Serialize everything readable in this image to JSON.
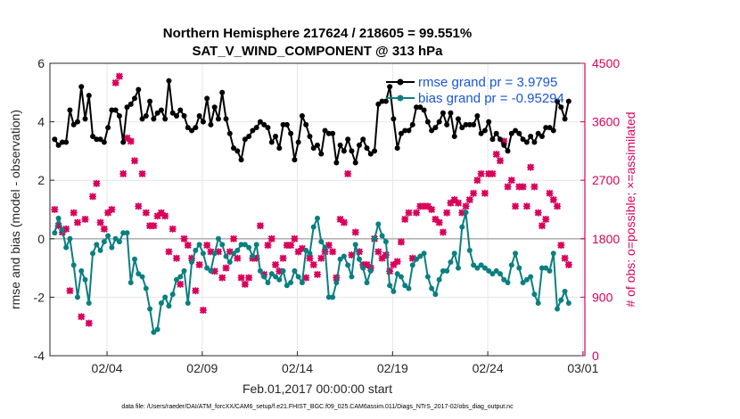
{
  "chart_data": {
    "type": "line",
    "title": "Northern Hemisphere 217624 / 218605 = 99.551%",
    "subtitle": "SAT_V_WIND_COMPONENT @ 313 hPa",
    "xlabel": "Feb.01,2017 00:00:00 start",
    "ylabel": "rmse and bias (model - observation)",
    "y2label": "# of obs: o=possible; ×=assimilated",
    "footer": "data file: /Users/raeder/DAI/ATM_forcXX/CAM6_setup/f.e21.FHIST_BGC.f09_025.CAM6assim.011/Diags_NTrS_2017-02/obs_diag_output.nc",
    "xlim": [
      1.0,
      29.1
    ],
    "ylim": [
      -4,
      6
    ],
    "y2lim": [
      0,
      4500
    ],
    "x_ticks": [
      {
        "value": 4,
        "label": "02/04"
      },
      {
        "value": 9,
        "label": "02/09"
      },
      {
        "value": 14,
        "label": "02/14"
      },
      {
        "value": 19,
        "label": "02/19"
      },
      {
        "value": 24,
        "label": "02/24"
      },
      {
        "value": 29,
        "label": "03/01"
      }
    ],
    "y_ticks": [
      {
        "value": -4,
        "label": "-4"
      },
      {
        "value": -2,
        "label": "-2"
      },
      {
        "value": 0,
        "label": "0"
      },
      {
        "value": 2,
        "label": "2"
      },
      {
        "value": 4,
        "label": "4"
      },
      {
        "value": 6,
        "label": "6"
      }
    ],
    "y2_ticks": [
      {
        "value": 0,
        "label": "0"
      },
      {
        "value": 900,
        "label": "900"
      },
      {
        "value": 1800,
        "label": "1800"
      },
      {
        "value": 2700,
        "label": "2700"
      },
      {
        "value": 3600,
        "label": "3600"
      },
      {
        "value": 4500,
        "label": "4500"
      }
    ],
    "grid": true,
    "legend_position": "top-right",
    "series": [
      {
        "name": "rmse grand pr = 3.9795",
        "axis": "left",
        "color": "#000000",
        "marker": "circle",
        "values": [
          3.4,
          3.2,
          3.3,
          3.3,
          4.4,
          3.9,
          4.0,
          5.2,
          4.1,
          4.9,
          3.5,
          3.4,
          3.4,
          3.3,
          3.8,
          4.4,
          4.4,
          4.2,
          3.3,
          4.5,
          4.6,
          4.8,
          5.1,
          4.1,
          4.2,
          4.7,
          4.1,
          4.3,
          4.4,
          4.1,
          5.4,
          4.3,
          4.2,
          4.4,
          4.2,
          3.8,
          3.7,
          3.8,
          4.2,
          4.0,
          4.8,
          3.9,
          4.5,
          4.1,
          5.0,
          4.1,
          3.6,
          3.1,
          3.0,
          2.7,
          3.4,
          3.5,
          3.7,
          3.8,
          4.0,
          3.9,
          3.8,
          3.3,
          3.5,
          3.1,
          3.9,
          3.9,
          3.6,
          2.7,
          3.3,
          4.2,
          3.9,
          3.5,
          3.1,
          3.2,
          2.9,
          3.7,
          3.6,
          3.6,
          2.6,
          3.2,
          3.0,
          3.4,
          3.0,
          2.6,
          3.2,
          3.4,
          3.1,
          2.9,
          3.0,
          4.6,
          4.7,
          4.7,
          5.2,
          4.1,
          3.1,
          3.6,
          3.7,
          3.7,
          3.9,
          4.5,
          4.5,
          4.4,
          4.0,
          3.7,
          3.8,
          4.0,
          4.3,
          3.9,
          4.3,
          3.5,
          4.1,
          3.8,
          3.9,
          3.9,
          3.9,
          4.2,
          3.6,
          3.7,
          4.0,
          3.4,
          3.6,
          3.4,
          3.2,
          3.0,
          3.6,
          3.7,
          3.6,
          3.4,
          3.3,
          3.5,
          3.3,
          3.6,
          3.5,
          3.8,
          3.8,
          3.7,
          4.7,
          4.5,
          4.1,
          4.7
        ]
      },
      {
        "name": "bias grand pr = -0.95294",
        "axis": "left",
        "color": "#0a7f80",
        "marker": "circle",
        "values": [
          0.2,
          0.7,
          0.3,
          -0.3,
          0.0,
          -0.9,
          -2.0,
          -1.1,
          -1.4,
          -2.2,
          -0.5,
          -0.2,
          -0.4,
          -0.1,
          0.1,
          -0.3,
          0.0,
          -0.1,
          0.2,
          0.2,
          -1.5,
          -0.7,
          -1.2,
          -1.3,
          -1.7,
          -2.4,
          -3.2,
          -3.1,
          -2.2,
          -2.0,
          -2.3,
          -1.9,
          -1.4,
          -1.3,
          -1.1,
          -2.2,
          -0.8,
          -0.4,
          -0.2,
          -0.5,
          -1.0,
          -1.1,
          -0.5,
          0.0,
          -0.2,
          -0.6,
          -0.8,
          -0.5,
          -0.4,
          -0.2,
          -0.2,
          -0.3,
          -0.6,
          -0.2,
          -1.1,
          -1.3,
          -1.5,
          -1.2,
          -1.3,
          -1.4,
          -1.1,
          -1.6,
          -1.5,
          -1.1,
          -1.3,
          -1.5,
          -0.4,
          -0.5,
          0.4,
          0.7,
          -0.1,
          -0.3,
          -2.0,
          -2.0,
          -1.5,
          -0.7,
          -0.6,
          -0.9,
          -1.3,
          -0.2,
          -0.7,
          -1.0,
          -1.5,
          -1.1,
          0.0,
          0.5,
          0.1,
          -0.1,
          -1.6,
          -1.8,
          -1.2,
          -1.3,
          -1.6,
          -1.7,
          -0.9,
          -0.7,
          -0.6,
          -0.5,
          -1.3,
          -1.7,
          -1.9,
          -1.4,
          -1.1,
          -1.1,
          -0.8,
          -0.5,
          -1.0,
          0.4,
          0.9,
          -0.4,
          -0.9,
          -1.0,
          -0.9,
          -1.0,
          -1.1,
          -1.2,
          -1.1,
          -1.2,
          -1.4,
          -1.5,
          -0.9,
          -0.5,
          -1.0,
          -1.5,
          -1.4,
          -1.3,
          -1.9,
          -2.2,
          -1.0,
          -1.0,
          -1.1,
          -0.5,
          -2.4,
          -2.1,
          -1.8,
          -2.2
        ]
      },
      {
        "name": "obs assimilated",
        "axis": "right",
        "color": "#d9005b",
        "marker": "x",
        "show_in_legend": false,
        "values": [
          2250,
          2000,
          1900,
          1950,
          1000,
          2200,
          2050,
          600,
          2100,
          500,
          2450,
          2650,
          2050,
          1950,
          2200,
          2250,
          4200,
          4300,
          2800,
          3350,
          3300,
          3000,
          2300,
          2800,
          2200,
          2000,
          2000,
          2150,
          2200,
          2150,
          1600,
          1950,
          1500,
          1100,
          1800,
          1700,
          1500,
          1000,
          1400,
          700,
          1700,
          1600,
          1300,
          1600,
          1200,
          1350,
          1600,
          1800,
          1500,
          1200,
          1100,
          1200,
          1500,
          1500,
          2000,
          1250,
          1700,
          1800,
          1400,
          1300,
          1500,
          1700,
          1700,
          1800,
          1600,
          1650,
          1200,
          1500,
          1400,
          1250,
          1500,
          1600,
          1700,
          1600,
          1200,
          2100,
          2050,
          2800,
          1550,
          1900,
          1600,
          1400,
          1400,
          1350,
          1800,
          1600,
          1500,
          1550,
          1300,
          1400,
          1450,
          1750,
          2100,
          2200,
          1500,
          2200,
          2300,
          2300,
          2300,
          2250,
          2100,
          2050,
          1900,
          2200,
          2350,
          2400,
          2350,
          2200,
          2300,
          2400,
          2500,
          2700,
          2800,
          2500,
          2800,
          2800,
          3100,
          3000,
          3300,
          2600,
          2700,
          2300,
          2600,
          2600,
          2300,
          2900,
          2600,
          2200,
          2000,
          2100,
          2500,
          2400,
          2300,
          1700,
          1500,
          1400
        ]
      },
      {
        "name": "obs possible",
        "axis": "right",
        "color": "#d9005b",
        "marker": "circle-open",
        "show_in_legend": false,
        "values": [
          2250,
          2000,
          1900,
          1950,
          1000,
          2200,
          2050,
          600,
          2100,
          500,
          2450,
          2650,
          2050,
          1950,
          2200,
          2250,
          4200,
          4300,
          2800,
          3350,
          3300,
          3000,
          2300,
          2800,
          2200,
          2000,
          2000,
          2150,
          2200,
          2150,
          1600,
          1950,
          1500,
          1100,
          1800,
          1700,
          1500,
          1000,
          1400,
          700,
          1700,
          1600,
          1300,
          1600,
          1200,
          1350,
          1600,
          1800,
          1500,
          1200,
          1100,
          1200,
          1500,
          1500,
          2000,
          1250,
          1700,
          1800,
          1400,
          1300,
          1500,
          1700,
          1700,
          1800,
          1600,
          1650,
          1200,
          1500,
          1400,
          1250,
          1500,
          1600,
          1700,
          1600,
          1200,
          2100,
          2050,
          2800,
          1550,
          1900,
          1600,
          1400,
          1400,
          1350,
          1800,
          1600,
          1500,
          1550,
          1300,
          1400,
          1450,
          1750,
          2100,
          2200,
          1500,
          2200,
          2300,
          2300,
          2300,
          2250,
          2100,
          2050,
          1900,
          2200,
          2350,
          2400,
          2350,
          2200,
          2300,
          2400,
          2500,
          2700,
          2800,
          2500,
          2800,
          2800,
          3100,
          3000,
          3300,
          2600,
          2700,
          2300,
          2600,
          2600,
          2300,
          2900,
          2600,
          2200,
          2000,
          2100,
          2500,
          2400,
          2300,
          1700,
          1500,
          1400
        ]
      }
    ]
  }
}
